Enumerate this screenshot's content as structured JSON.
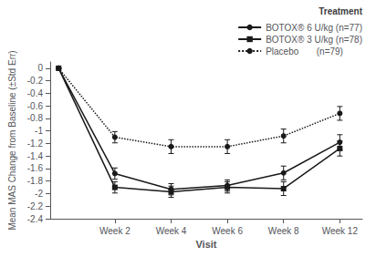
{
  "chart_data": {
    "type": "line",
    "xlabel": "Visit",
    "ylabel": "Mean MAS Change from Baseline (±Std Err)",
    "legend_title": "Treatment",
    "x": [
      0,
      1,
      2,
      3,
      4,
      5
    ],
    "xlim": [
      -0.15,
      5.4
    ],
    "xticks": [
      {
        "value": 1,
        "label": "Week 2"
      },
      {
        "value": 2,
        "label": "Week 4"
      },
      {
        "value": 3,
        "label": "Week 6"
      },
      {
        "value": 4,
        "label": "Week 8"
      },
      {
        "value": 5,
        "label": "Week 12"
      }
    ],
    "ylim": [
      -2.4,
      0.1
    ],
    "yticks": [
      0,
      -0.2,
      -0.4,
      -0.6,
      -0.8,
      -1,
      -1.2,
      -1.4,
      -1.6,
      -1.8,
      -2,
      -2.2,
      -2.4
    ],
    "grid": false,
    "legend": "upper right",
    "series": [
      {
        "name": "BOTOX® 6 U/kg (n=77)",
        "color": "#1a1a1a",
        "marker": "circle",
        "line_style": "solid",
        "values": [
          0.0,
          -1.68,
          -1.93,
          -1.87,
          -1.67,
          -1.18
        ],
        "errors": [
          0.0,
          0.09,
          0.09,
          0.09,
          0.11,
          0.12
        ]
      },
      {
        "name": "BOTOX® 3 U/kg (n=78)",
        "color": "#1a1a1a",
        "marker": "square",
        "line_style": "solid",
        "values": [
          0.0,
          -1.9,
          -1.97,
          -1.9,
          -1.92,
          -1.28
        ],
        "errors": [
          0.0,
          0.09,
          0.09,
          0.09,
          0.11,
          0.12
        ]
      },
      {
        "name": "Placebo       (n=79)",
        "color": "#1a1a1a",
        "marker": "circle",
        "line_style": "dotted",
        "values": [
          0.0,
          -1.1,
          -1.25,
          -1.25,
          -1.08,
          -0.72
        ],
        "errors": [
          0.0,
          0.09,
          0.11,
          0.11,
          0.11,
          0.11
        ]
      }
    ]
  }
}
